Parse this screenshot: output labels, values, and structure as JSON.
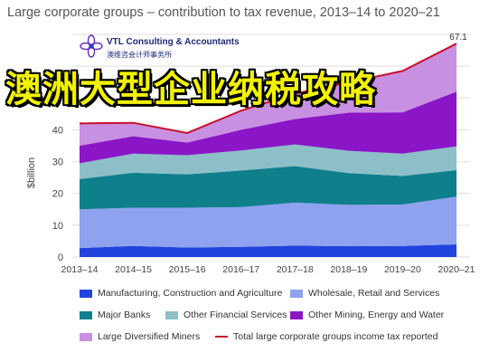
{
  "title": "Large corporate groups – contribution to tax revenue, 2013–14 to 2020–21",
  "logo": {
    "name": "VTL Consulting & Accountants",
    "subtitle": "澳维咨会计师事务所"
  },
  "banner": "澳洲大型企业纳税攻略",
  "chart_data": {
    "type": "area",
    "stacked": true,
    "categories": [
      "2013–14",
      "2014–15",
      "2015–16",
      "2016–17",
      "2017–18",
      "2018–19",
      "2019–20",
      "2020–21"
    ],
    "ylabel": "$billion",
    "ylim": [
      0,
      70
    ],
    "yticks": [
      0,
      10,
      20,
      30,
      40
    ],
    "series": [
      {
        "name": "Manufacturing, Construction and Agriculture",
        "color": "#2244dd",
        "values": [
          2.8,
          3.5,
          3.0,
          3.2,
          3.6,
          3.4,
          3.5,
          4.0
        ]
      },
      {
        "name": "Wholesale, Retail and Services",
        "color": "#8fa2f0",
        "values": [
          12.2,
          12.0,
          12.5,
          12.5,
          13.5,
          13.0,
          13.0,
          15.0
        ]
      },
      {
        "name": "Major Banks",
        "color": "#0f7f8c",
        "values": [
          9.5,
          11.0,
          10.5,
          11.5,
          11.5,
          10.0,
          9.0,
          8.3
        ]
      },
      {
        "name": "Other Financial Services",
        "color": "#8cbfc8",
        "values": [
          5.0,
          6.0,
          6.0,
          6.3,
          6.8,
          7.0,
          7.0,
          7.5
        ]
      },
      {
        "name": "Other Mining, Energy and Water",
        "color": "#8a16c8",
        "values": [
          5.5,
          5.5,
          4.0,
          6.5,
          8.0,
          12.0,
          13.0,
          17.2
        ]
      },
      {
        "name": "Large Diversified Miners",
        "color": "#c890e0",
        "values": [
          7.0,
          4.2,
          3.0,
          6.0,
          8.0,
          9.5,
          13.0,
          15.1
        ]
      }
    ],
    "line": {
      "name": "Total large corporate groups income tax reported",
      "color": "#c8102e",
      "values": [
        42.0,
        42.2,
        39.0,
        46.0,
        51.4,
        54.9,
        58.5,
        67.1
      ]
    },
    "annotations": [
      "67.1"
    ],
    "legend_position": "bottom"
  }
}
